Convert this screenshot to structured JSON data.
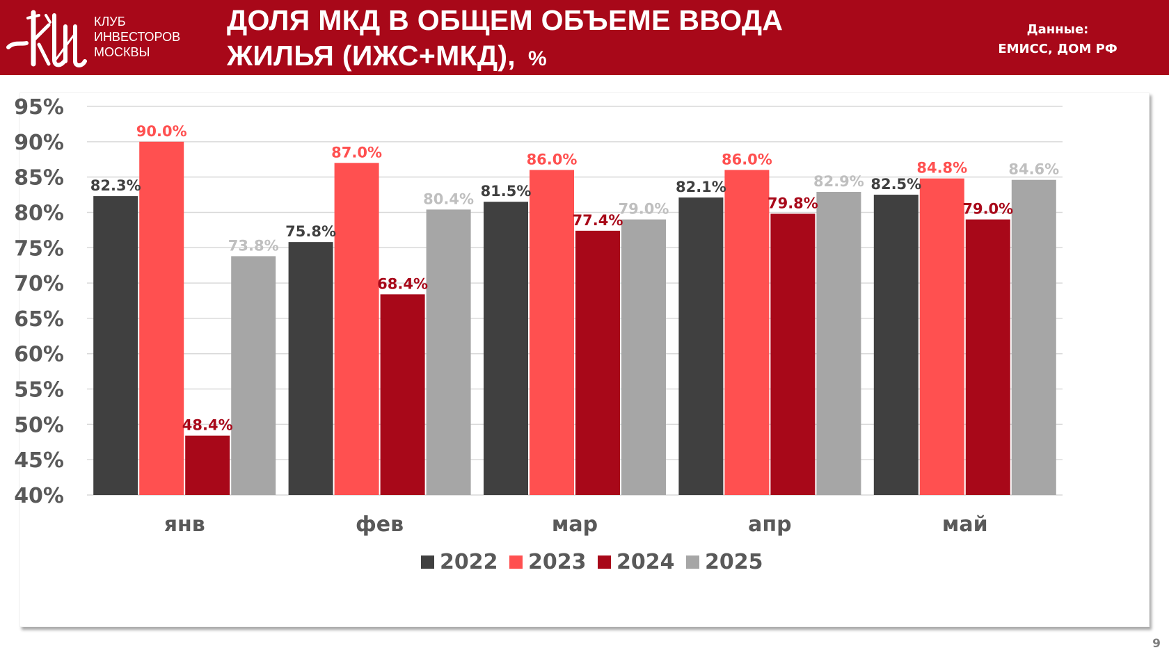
{
  "header": {
    "org_lines": [
      "КЛУБ",
      "ИНВЕСТОРОВ",
      "МОСКВЫ"
    ],
    "title_line1": "ДОЛЯ МКД В ОБЩЕМ ОБЪЕМЕ ВВОДА",
    "title_line2": "ЖИЛЬЯ (ИЖС+МКД),",
    "title_unit": "%",
    "source_label": "Данные:",
    "source_value": "ЕМИСС, ДОМ РФ",
    "logo_icon": "kim-monogram-logo"
  },
  "colors": {
    "header_bg": "#A80819",
    "2022": "#404040",
    "2023": "#FF5050",
    "2024": "#A80819",
    "2025": "#A6A6A6",
    "label_2025": "#BFBFBF",
    "axis_text": "#595959",
    "grid": "#D9D9D9"
  },
  "page_number": "9",
  "chart_data": {
    "type": "bar",
    "title": "ДОЛЯ МКД В ОБЩЕМ ОБЪЕМЕ ВВОДА ЖИЛЬЯ (ИЖС+МКД), %",
    "xlabel": "",
    "ylabel": "",
    "ylim": [
      40,
      95
    ],
    "yticks": [
      40,
      45,
      50,
      55,
      60,
      65,
      70,
      75,
      80,
      85,
      90,
      95
    ],
    "ytick_format": "{v}%",
    "grid": true,
    "legend_position": "bottom",
    "categories": [
      "янв",
      "фев",
      "мар",
      "апр",
      "май"
    ],
    "series": [
      {
        "name": "2022",
        "values": [
          82.3,
          75.8,
          81.5,
          82.1,
          82.5
        ],
        "labels": [
          "82.3%",
          "75.8%",
          "81.5%",
          "82.1%",
          "82.5%"
        ]
      },
      {
        "name": "2023",
        "values": [
          90.0,
          87.0,
          86.0,
          86.0,
          84.8
        ],
        "labels": [
          "90.0%",
          "87.0%",
          "86.0%",
          "86.0%",
          "84.8%"
        ]
      },
      {
        "name": "2024",
        "values": [
          48.4,
          68.4,
          77.4,
          79.8,
          79.0
        ],
        "labels": [
          "48.4%",
          "68.4%",
          "77.4%",
          "79.8%",
          "79.0%"
        ]
      },
      {
        "name": "2025",
        "values": [
          73.8,
          80.4,
          79.0,
          82.9,
          84.6
        ],
        "labels": [
          "73.8%",
          "80.4%",
          "79.0%",
          "82.9%",
          "84.6%"
        ]
      }
    ]
  }
}
